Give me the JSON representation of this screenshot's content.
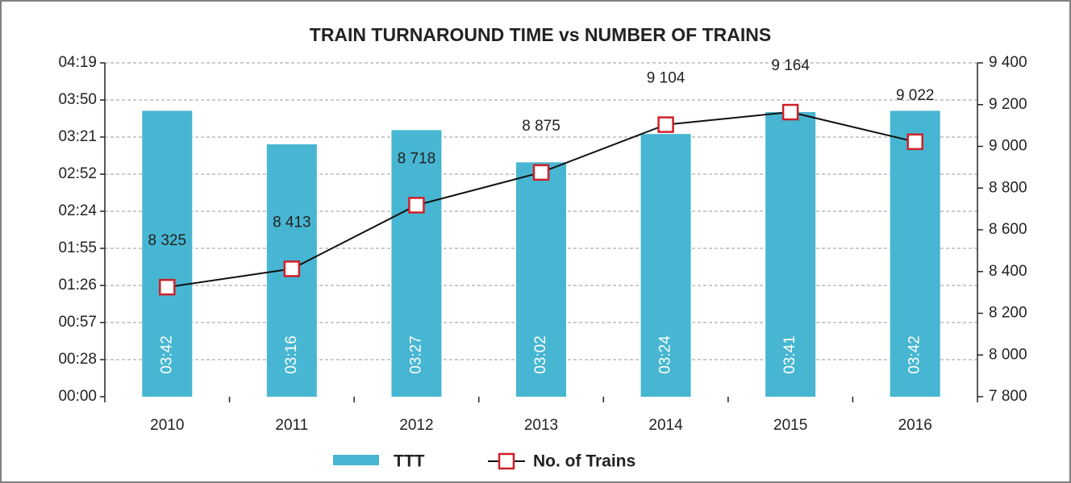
{
  "chart_data": {
    "type": "bar",
    "title": "TRAIN TURNAROUND TIME vs NUMBER OF TRAINS",
    "categories": [
      "2010",
      "2011",
      "2012",
      "2013",
      "2014",
      "2015",
      "2016"
    ],
    "series": [
      {
        "name": "TTT",
        "type": "bar",
        "color": "#47b6d2",
        "values": [
          222,
          196,
          207,
          182,
          204,
          221,
          222
        ],
        "value_labels": [
          "03:42",
          "03:16",
          "03:27",
          "03:02",
          "03:24",
          "03:41",
          "03:42"
        ]
      },
      {
        "name": "No. of Trains",
        "type": "line",
        "axis": "y2",
        "color": "#d0202a",
        "values": [
          8325,
          8413,
          8718,
          8875,
          9104,
          9164,
          9022
        ],
        "value_labels": [
          "8 325",
          "8 413",
          "8 718",
          "8 875",
          "9 104",
          "9 164",
          "9 022"
        ]
      }
    ],
    "ylim": [
      0,
      259.2
    ],
    "yticks": [
      {
        "value": 0,
        "label": "00:00"
      },
      {
        "value": 28.8,
        "label": "00:28"
      },
      {
        "value": 57.6,
        "label": "00:57"
      },
      {
        "value": 86.4,
        "label": "01:26"
      },
      {
        "value": 115.2,
        "label": "01:55"
      },
      {
        "value": 144,
        "label": "02:24"
      },
      {
        "value": 172.8,
        "label": "02:52"
      },
      {
        "value": 201.6,
        "label": "03:21"
      },
      {
        "value": 230.4,
        "label": "03:50"
      },
      {
        "value": 259.2,
        "label": "04:19"
      }
    ],
    "y2lim": [
      7800,
      9400
    ],
    "y2ticks": [
      {
        "value": 7800,
        "label": "7 800"
      },
      {
        "value": 8000,
        "label": "8 000"
      },
      {
        "value": 8200,
        "label": "8 200"
      },
      {
        "value": 8400,
        "label": "8 400"
      },
      {
        "value": 8600,
        "label": "8 600"
      },
      {
        "value": 8800,
        "label": "8 800"
      },
      {
        "value": 9000,
        "label": "9 000"
      },
      {
        "value": 9200,
        "label": "9 200"
      },
      {
        "value": 9400,
        "label": "9 400"
      }
    ],
    "grid": true
  }
}
